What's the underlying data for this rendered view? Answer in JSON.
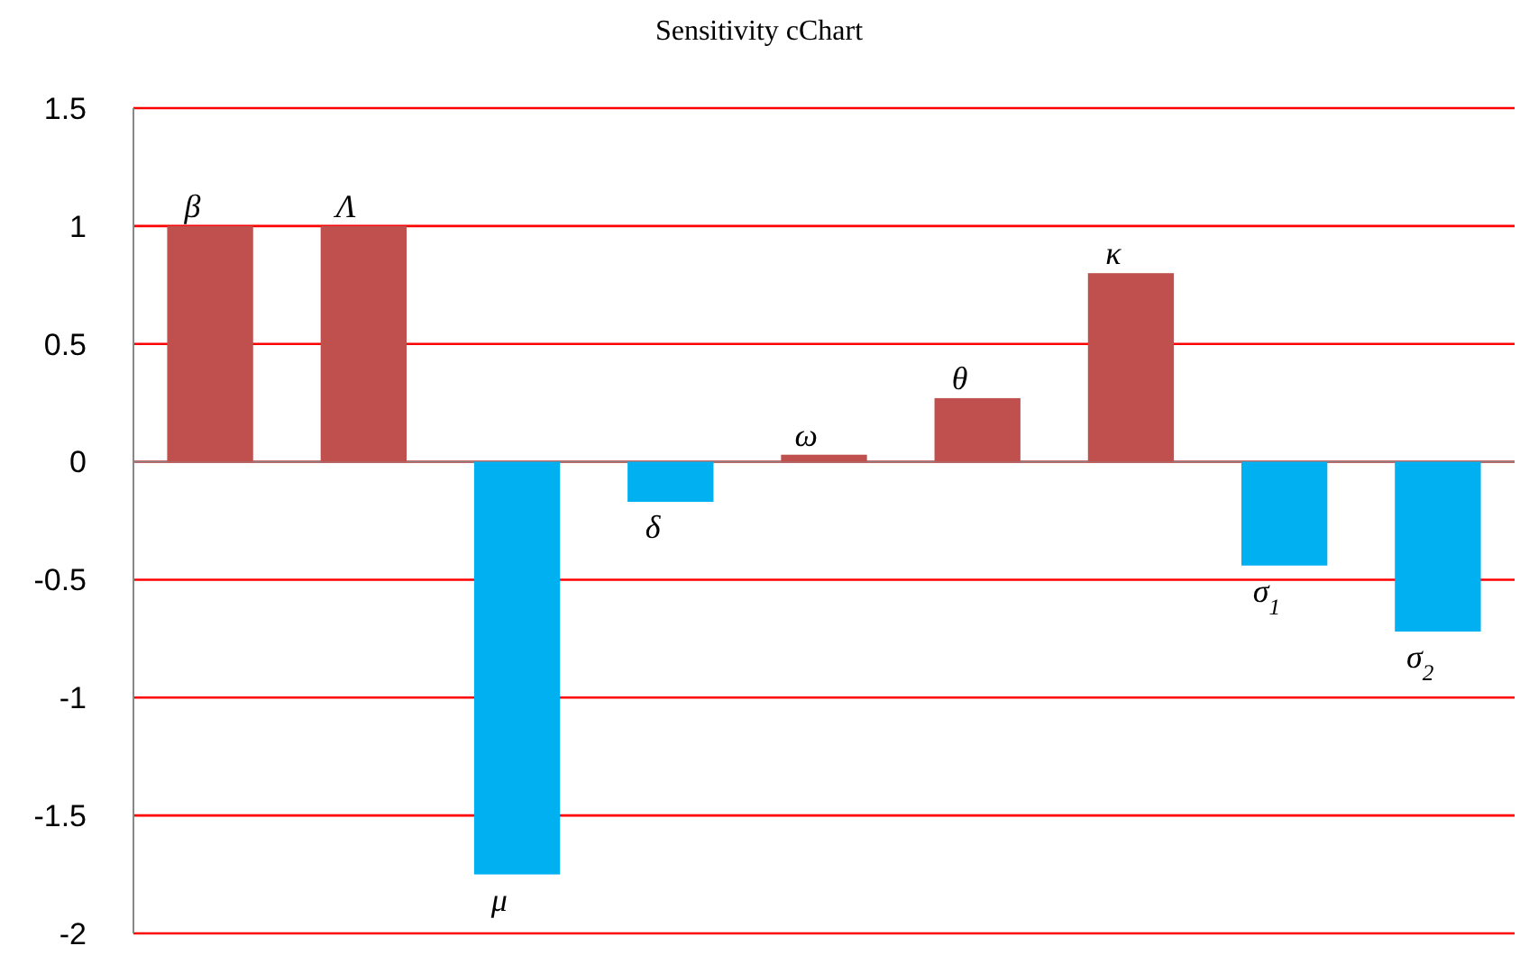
{
  "chart_data": {
    "type": "bar",
    "title": "Sensitivity cChart",
    "categories": [
      "β",
      "Λ",
      "μ",
      "δ",
      "ω",
      "θ",
      "κ",
      "σ$_{1}$",
      "σ$_{2}$"
    ],
    "values": [
      1,
      1,
      -1.75,
      -0.17,
      0.03,
      0.27,
      0.8,
      -0.44,
      -0.72
    ],
    "colors": [
      "#c0504d",
      "#c0504d",
      "#00b0f0",
      "#00b0f0",
      "#c0504d",
      "#c0504d",
      "#c0504d",
      "#00b0f0",
      "#00b0f0"
    ],
    "ylim": [
      -2,
      1.5
    ],
    "yticks": [
      -2,
      -1.5,
      -1,
      -0.5,
      0,
      0.5,
      1,
      1.5
    ],
    "grid": "y"
  }
}
